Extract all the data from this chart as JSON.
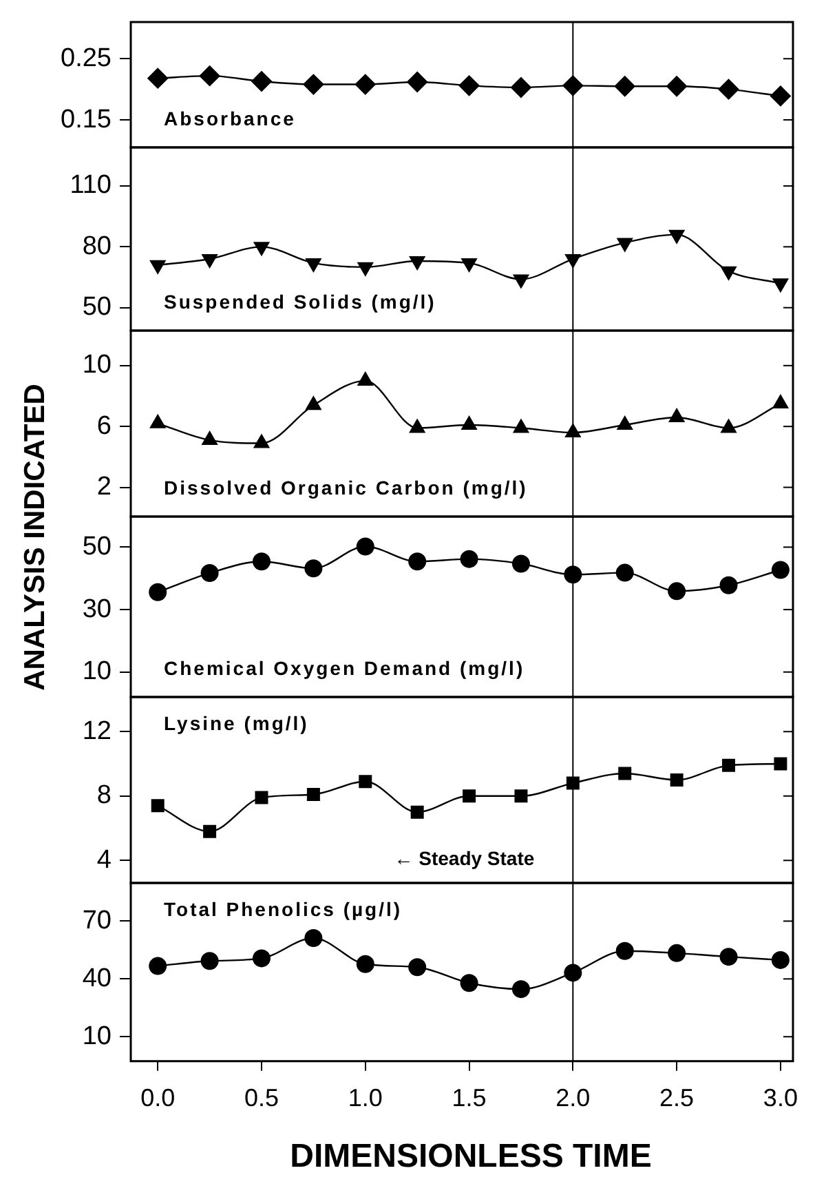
{
  "chart_data": [
    {
      "type": "line",
      "x": [
        0,
        0.25,
        0.5,
        0.75,
        1,
        1.25,
        1.5,
        1.75,
        2,
        2.25,
        2.5,
        2.75,
        3
      ],
      "xlim": [
        -0.13,
        3.06
      ],
      "ylim": [
        0.105,
        0.31
      ],
      "yticks": [
        0.15,
        0.25
      ],
      "tick_labels": "y",
      "grid": false,
      "legend": "bottom left",
      "marker": "diamond",
      "series": [
        {
          "name": "Absorbance",
          "color": "#000000",
          "values": [
            0.218,
            0.222,
            0.213,
            0.208,
            0.208,
            0.212,
            0.206,
            0.203,
            0.206,
            0.205,
            0.205,
            0.2,
            0.189
          ]
        }
      ],
      "ref_lines": [
        {
          "axis": "x",
          "value": 2
        }
      ]
    },
    {
      "type": "line",
      "x": [
        0,
        0.25,
        0.5,
        0.75,
        1,
        1.25,
        1.5,
        1.75,
        2,
        2.25,
        2.5,
        2.75,
        3
      ],
      "xlim": [
        -0.13,
        3.06
      ],
      "ylim": [
        38.7,
        129
      ],
      "yticks": [
        50,
        80,
        110
      ],
      "tick_labels": "y",
      "grid": false,
      "legend": "bottom left",
      "marker": "triangle-down",
      "series": [
        {
          "name": "Suspended Solids (mg/l)",
          "color": "#000000",
          "values": [
            71,
            74,
            80,
            72,
            70,
            73,
            72,
            64,
            74,
            82,
            86,
            68,
            62
          ]
        }
      ],
      "ref_lines": [
        {
          "axis": "x",
          "value": 2
        }
      ]
    },
    {
      "type": "line",
      "x": [
        0,
        0.25,
        0.5,
        0.75,
        1,
        1.25,
        1.5,
        1.75,
        2,
        2.25,
        2.5,
        2.75,
        3
      ],
      "xlim": [
        -0.13,
        3.06
      ],
      "ylim": [
        0.08,
        12.3
      ],
      "yticks": [
        2,
        6,
        10
      ],
      "tick_labels": "y",
      "grid": false,
      "legend": "bottom left",
      "marker": "triangle",
      "series": [
        {
          "name": "Dissolved Organic Carbon (mg/l)",
          "color": "#000000",
          "values": [
            6.2,
            5.1,
            4.9,
            7.4,
            9.0,
            5.9,
            6.1,
            5.9,
            5.6,
            6.1,
            6.6,
            5.9,
            7.5
          ]
        }
      ],
      "ref_lines": [
        {
          "axis": "x",
          "value": 2
        }
      ]
    },
    {
      "type": "line",
      "ylabel": "ANALYSIS INDICATED",
      "x": [
        0,
        0.25,
        0.5,
        0.75,
        1,
        1.25,
        1.5,
        1.75,
        2,
        2.25,
        2.5,
        2.75,
        3
      ],
      "xlim": [
        -0.13,
        3.06
      ],
      "ylim": [
        2,
        59.8
      ],
      "yticks": [
        10,
        30,
        50
      ],
      "tick_labels": "y",
      "grid": false,
      "legend": "bottom left",
      "marker": "circle",
      "series": [
        {
          "name": "Chemical Oxygen Demand (mg/l)",
          "color": "#000000",
          "values": [
            35.6,
            41.7,
            45.4,
            43.2,
            50.2,
            45.4,
            46.2,
            44.7,
            41.2,
            41.8,
            35.9,
            37.8,
            42.7
          ]
        }
      ],
      "ref_lines": [
        {
          "axis": "x",
          "value": 2
        }
      ]
    },
    {
      "type": "line",
      "x": [
        0,
        0.25,
        0.5,
        0.75,
        1,
        1.25,
        1.5,
        1.75,
        2,
        2.25,
        2.5,
        2.75,
        3
      ],
      "xlim": [
        -0.13,
        3.06
      ],
      "ylim": [
        2.6,
        14.15
      ],
      "yticks": [
        4,
        8,
        12
      ],
      "tick_labels": "y",
      "grid": false,
      "legend": "left",
      "marker": "square",
      "series": [
        {
          "name": "Lysine (mg/l)",
          "color": "#000000",
          "values": [
            7.4,
            5.8,
            7.9,
            8.1,
            8.9,
            7.0,
            8.0,
            8.0,
            8.8,
            9.4,
            9.0,
            9.9,
            10.0
          ]
        }
      ],
      "ref_lines": [
        {
          "axis": "x",
          "value": 2,
          "label": "← Steady State"
        }
      ]
    },
    {
      "type": "line",
      "xlabel": "DIMENSIONLESS TIME",
      "x": [
        0,
        0.25,
        0.5,
        0.75,
        1,
        1.25,
        1.5,
        1.75,
        2,
        2.25,
        2.5,
        2.75,
        3
      ],
      "xlim": [
        -0.13,
        3.06
      ],
      "xticks": [
        {
          "value": 0,
          "label": "0.0"
        },
        {
          "value": 0.5,
          "label": "0.5"
        },
        {
          "value": 1,
          "label": "1.0"
        },
        {
          "value": 1.5,
          "label": "1.5"
        },
        {
          "value": 2,
          "label": "2.0"
        },
        {
          "value": 2.5,
          "label": "2.5"
        },
        {
          "value": 3,
          "label": "3.0"
        }
      ],
      "ylim": [
        -2.7,
        89.8
      ],
      "yticks": [
        10,
        40,
        70
      ],
      "grid": false,
      "legend": "top left",
      "marker": "circle",
      "series": [
        {
          "name": "Total Phenolics (µg/l)",
          "color": "#000000",
          "values": [
            46.7,
            49.3,
            50.7,
            61.2,
            47.7,
            46.1,
            37.9,
            34.7,
            43.2,
            54.5,
            53.4,
            51.5,
            49.8
          ]
        }
      ],
      "ref_lines": [
        {
          "axis": "x",
          "value": 2
        }
      ]
    }
  ]
}
